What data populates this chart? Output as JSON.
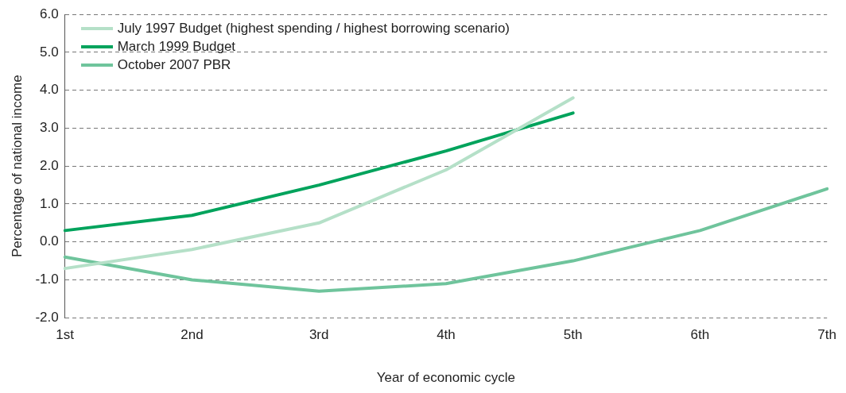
{
  "chart_data": {
    "type": "line",
    "xlabel": "Year of economic cycle",
    "ylabel": "Percentage of national income",
    "categories": [
      "1st",
      "2nd",
      "3rd",
      "4th",
      "5th",
      "6th",
      "7th"
    ],
    "series": [
      {
        "name": "July 1997 Budget (highest spending / highest borrowing scenario)",
        "color": "#b5e0c8",
        "values": [
          -0.7,
          -0.2,
          0.5,
          1.9,
          3.8,
          null,
          null
        ]
      },
      {
        "name": "March 1999 Budget",
        "color": "#00a35c",
        "values": [
          0.3,
          0.7,
          1.5,
          2.4,
          3.4,
          null,
          null
        ]
      },
      {
        "name": "October 2007 PBR",
        "color": "#6fc49c",
        "values": [
          -0.4,
          -1.0,
          -1.3,
          -1.1,
          -0.5,
          0.3,
          1.4
        ]
      }
    ],
    "ylim": [
      -2,
      6
    ],
    "yticks": [
      {
        "value": -2,
        "label": "-2.0"
      },
      {
        "value": -1,
        "label": "-1.0"
      },
      {
        "value": 0,
        "label": "0.0"
      },
      {
        "value": 1,
        "label": "1.0"
      },
      {
        "value": 2,
        "label": "2.0"
      },
      {
        "value": 3,
        "label": "3.0"
      },
      {
        "value": 4,
        "label": "4.0"
      },
      {
        "value": 5,
        "label": "5.0"
      },
      {
        "value": 6,
        "label": "6.0"
      }
    ],
    "grid": "y",
    "legend": "top left",
    "marker": "none",
    "line_style": "solid"
  }
}
